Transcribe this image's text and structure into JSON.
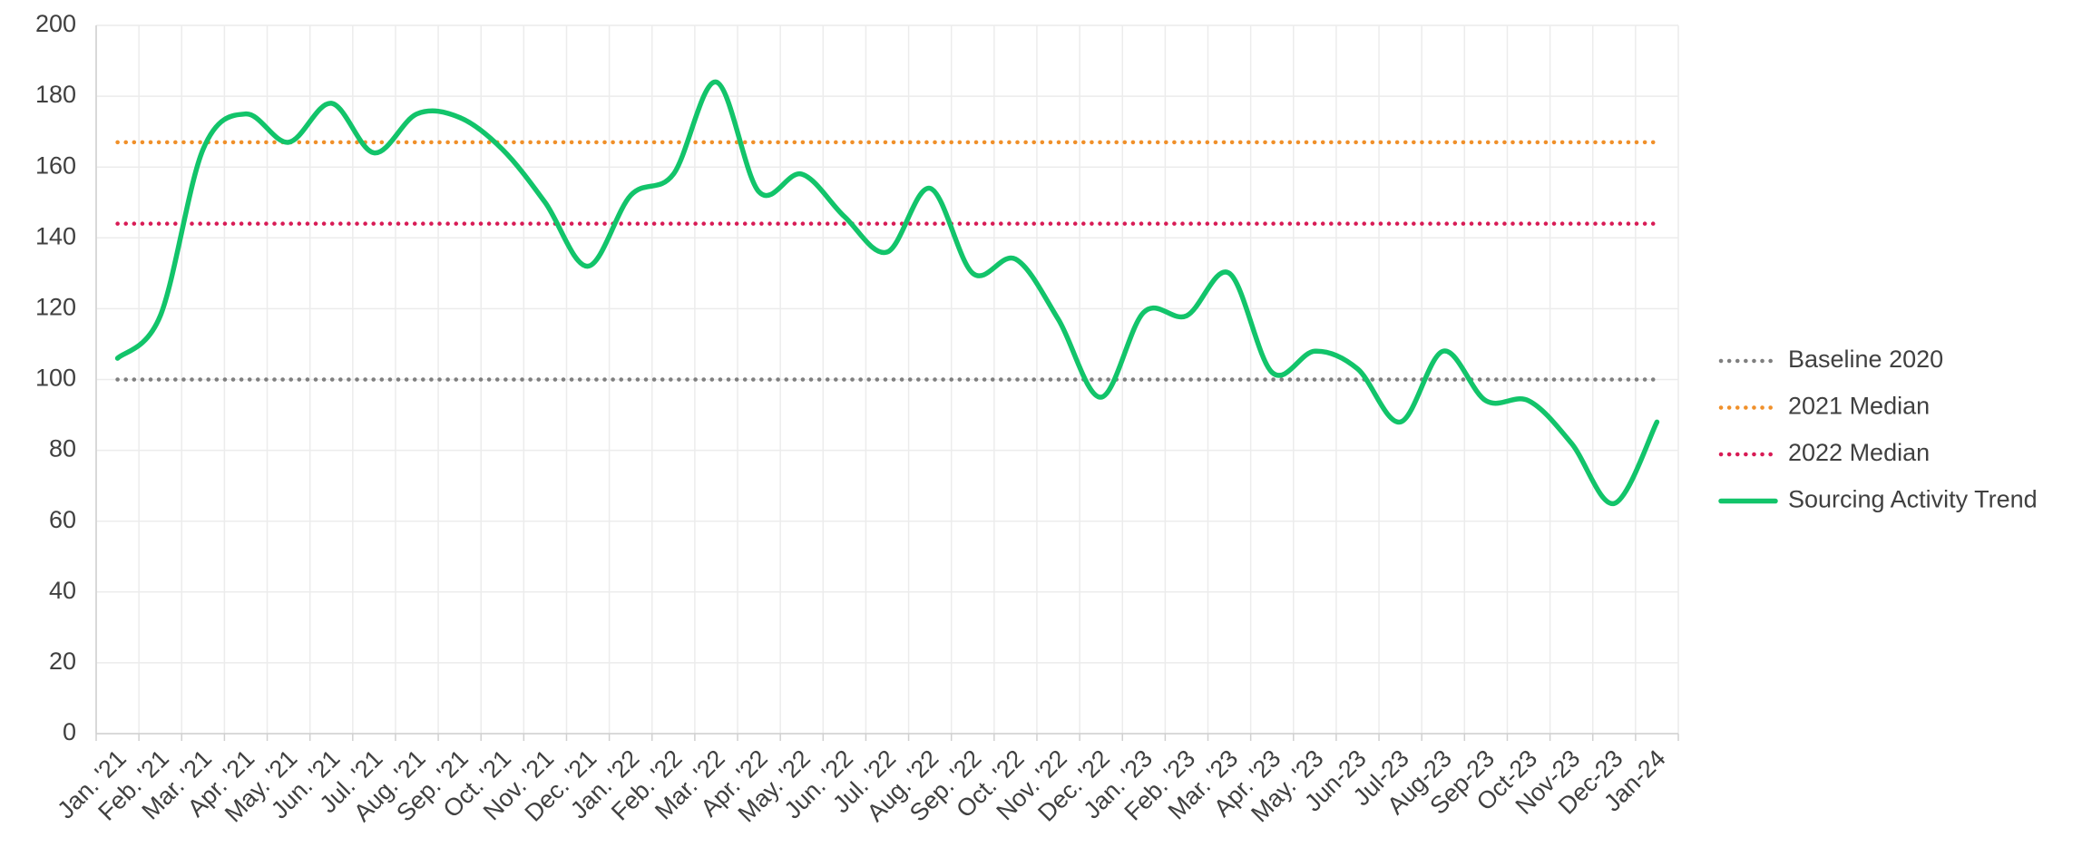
{
  "chart_data": {
    "type": "line",
    "categories": [
      "Jan. '21",
      "Feb. '21",
      "Mar. '21",
      "Apr. '21",
      "May. '21",
      "Jun. '21",
      "Jul. '21",
      "Aug. '21",
      "Sep. '21",
      "Oct. '21",
      "Nov. '21",
      "Dec. '21",
      "Jan. '22",
      "Feb. '22",
      "Mar. '22",
      "Apr. '22",
      "May. '22",
      "Jun. '22",
      "Jul. '22",
      "Aug. '22",
      "Sep. '22",
      "Oct. '22",
      "Nov. '22",
      "Dec. '22",
      "Jan. '23",
      "Feb. '23",
      "Mar. '23",
      "Apr. '23",
      "May. '23",
      "Jun-23",
      "Jul-23",
      "Aug-23",
      "Sep-23",
      "Oct-23",
      "Nov-23",
      "Dec-23",
      "Jan-24"
    ],
    "series": [
      {
        "name": "Baseline 2020",
        "color": "#7f7f7f",
        "dotted": true,
        "values": [
          100,
          100,
          100,
          100,
          100,
          100,
          100,
          100,
          100,
          100,
          100,
          100,
          100,
          100,
          100,
          100,
          100,
          100,
          100,
          100,
          100,
          100,
          100,
          100,
          100,
          100,
          100,
          100,
          100,
          100,
          100,
          100,
          100,
          100,
          100,
          100,
          100
        ]
      },
      {
        "name": "2021 Median",
        "color": "#f0902a",
        "dotted": true,
        "values": [
          167,
          167,
          167,
          167,
          167,
          167,
          167,
          167,
          167,
          167,
          167,
          167,
          167,
          167,
          167,
          167,
          167,
          167,
          167,
          167,
          167,
          167,
          167,
          167,
          167,
          167,
          167,
          167,
          167,
          167,
          167,
          167,
          167,
          167,
          167,
          167,
          167
        ]
      },
      {
        "name": "2022 Median",
        "color": "#d81b55",
        "dotted": true,
        "values": [
          144,
          144,
          144,
          144,
          144,
          144,
          144,
          144,
          144,
          144,
          144,
          144,
          144,
          144,
          144,
          144,
          144,
          144,
          144,
          144,
          144,
          144,
          144,
          144,
          144,
          144,
          144,
          144,
          144,
          144,
          144,
          144,
          144,
          144,
          144,
          144,
          144
        ]
      },
      {
        "name": "Sourcing Activity Trend",
        "color": "#12c46a",
        "dotted": false,
        "values": [
          106,
          118,
          165,
          175,
          167,
          178,
          164,
          175,
          174,
          165,
          150,
          132,
          152,
          158,
          184,
          153,
          158,
          146,
          136,
          154,
          130,
          134,
          117,
          95,
          119,
          118,
          130,
          102,
          108,
          103,
          88,
          108,
          94,
          94,
          82,
          65,
          88
        ]
      }
    ],
    "ylim": [
      0,
      200
    ],
    "yticks": [
      0,
      20,
      40,
      60,
      80,
      100,
      120,
      140,
      160,
      180,
      200
    ],
    "grid": true,
    "legend": "right"
  }
}
